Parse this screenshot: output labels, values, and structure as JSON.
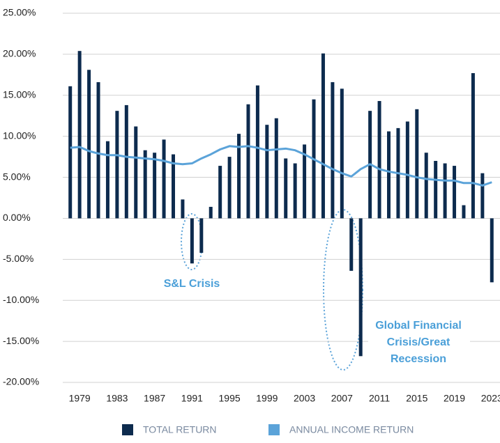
{
  "chart_data": {
    "type": "bar_line",
    "categories": [
      null,
      "1979",
      null,
      null,
      null,
      "1983",
      null,
      null,
      null,
      "1987",
      null,
      null,
      null,
      "1991",
      null,
      null,
      null,
      "1995",
      null,
      null,
      null,
      "1999",
      null,
      null,
      null,
      "2003",
      null,
      null,
      null,
      "2007",
      null,
      null,
      null,
      "2011",
      null,
      null,
      null,
      "2015",
      null,
      null,
      null,
      "2019",
      null,
      null,
      null,
      "2023"
    ],
    "series": [
      {
        "name": "TOTAL RETURN",
        "color": "#0d2b4e",
        "kind": "bar",
        "values": [
          16.1,
          20.4,
          18.1,
          16.6,
          9.4,
          13.1,
          13.8,
          11.2,
          8.3,
          8.0,
          9.6,
          7.8,
          2.3,
          -5.5,
          -4.2,
          1.4,
          6.4,
          7.5,
          10.3,
          13.9,
          16.2,
          11.4,
          12.2,
          7.3,
          6.7,
          9.0,
          14.5,
          20.1,
          16.6,
          15.8,
          -6.4,
          -16.8,
          13.1,
          14.3,
          10.6,
          11.0,
          11.8,
          13.3,
          8.0,
          7.0,
          6.7,
          6.4,
          1.6,
          17.7,
          5.5,
          -7.8
        ]
      },
      {
        "name": "ANNUAL INCOME RETURN",
        "color": "#5ba3d9",
        "kind": "line",
        "values": [
          8.6,
          8.7,
          8.2,
          7.9,
          7.7,
          7.7,
          7.5,
          7.4,
          7.3,
          7.2,
          7.0,
          6.7,
          6.6,
          6.7,
          7.3,
          7.8,
          8.4,
          8.8,
          8.7,
          8.8,
          8.6,
          8.3,
          8.4,
          8.5,
          8.3,
          7.8,
          7.2,
          6.6,
          6.0,
          5.5,
          5.1,
          6.0,
          6.6,
          6.0,
          5.7,
          5.5,
          5.3,
          5.0,
          4.8,
          4.7,
          4.6,
          4.6,
          4.3,
          4.3,
          4.0,
          4.4
        ]
      }
    ],
    "ylim": [
      -20,
      25
    ],
    "yticks": [
      {
        "value": -20,
        "label": "-20.00%"
      },
      {
        "value": -15,
        "label": "-15.00%"
      },
      {
        "value": -10,
        "label": "-10.00%"
      },
      {
        "value": -5,
        "label": "-5.00%"
      },
      {
        "value": 0,
        "label": "0.00%"
      },
      {
        "value": 5,
        "label": "5.00%"
      },
      {
        "value": 10,
        "label": "10.00%"
      },
      {
        "value": 15,
        "label": "15.00%"
      },
      {
        "value": 20,
        "label": "20.00%"
      },
      {
        "value": 25,
        "label": "25.00%"
      }
    ],
    "grid": true,
    "annotations": [
      "S&L Crisis",
      "Global Financial",
      "Crisis/Great",
      "Recession"
    ]
  }
}
